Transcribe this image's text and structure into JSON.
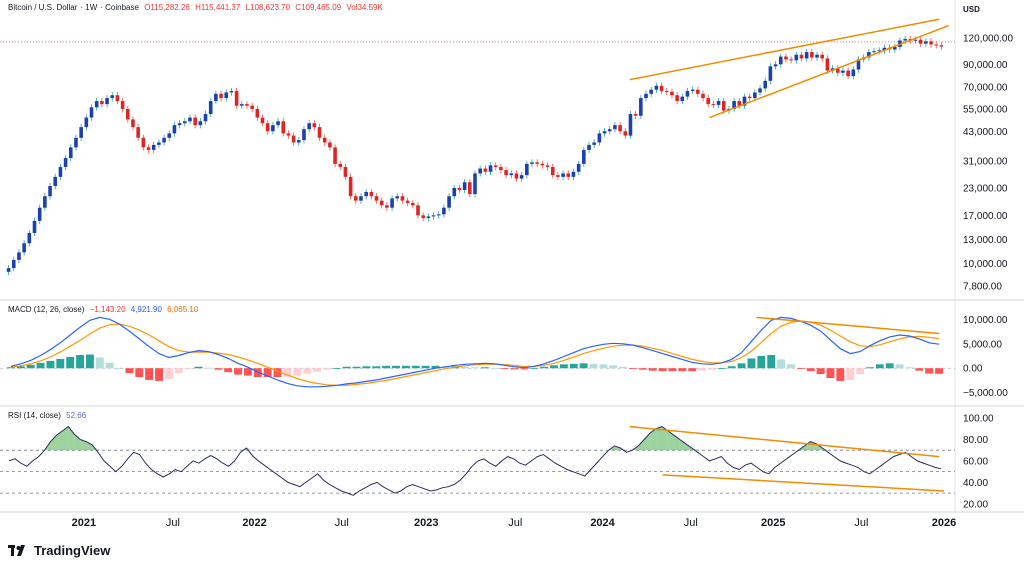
{
  "header": {
    "symbol": "Bitcoin / U.S. Dollar",
    "interval": "1W",
    "exchange": "Coinbase",
    "open": "O115,282.26",
    "high": "H115,441.37",
    "low": "L108,623.70",
    "close": "C109,465.09",
    "volume": "Vol34.59K",
    "currency": "USD"
  },
  "macd_header": {
    "title": "MACD (12, 26, close)",
    "hist": "−1,143.20",
    "macd": "4,921.90",
    "signal": "6,065.10"
  },
  "rsi_header": {
    "title": "RSI (14, close)",
    "value": "52.66"
  },
  "branding": {
    "name": "TradingView"
  },
  "colors": {
    "up": "#26a69a",
    "down": "#ef5350",
    "macd": "#2962ff",
    "signal": "#ff9800",
    "rsi": "#2a2e5a",
    "trend": "#f08c00"
  },
  "chart_data": [
    {
      "type": "candlestick",
      "scale": "log",
      "x_tick_labels": [
        "2021",
        "Jul",
        "2022",
        "Jul",
        "2023",
        "Jul",
        "2024",
        "Jul",
        "2025",
        "Jul",
        "2026"
      ],
      "y_ticks": [
        "120,000.00",
        "90,000.00",
        "70,000.00",
        "55,000.00",
        "43,000.00",
        "31,000.00",
        "23,000.00",
        "17,000.00",
        "13,000.00",
        "10,000.00",
        "7,800.00"
      ],
      "y_values": [
        120000,
        90000,
        70000,
        55000,
        43000,
        31000,
        23000,
        17000,
        13000,
        10000,
        7800
      ],
      "closes": [
        9500,
        10400,
        11300,
        12500,
        14000,
        16000,
        18500,
        21000,
        23500,
        26000,
        29000,
        32000,
        36000,
        40000,
        45000,
        50000,
        56000,
        60000,
        58000,
        62000,
        64000,
        60000,
        55000,
        49000,
        45000,
        40000,
        36000,
        35000,
        37000,
        38000,
        40000,
        42000,
        46000,
        47000,
        48000,
        50000,
        46000,
        48000,
        52000,
        60000,
        65000,
        62000,
        66000,
        67000,
        57000,
        58000,
        57000,
        55000,
        50000,
        47000,
        43000,
        46000,
        48000,
        42000,
        41000,
        38000,
        39000,
        44000,
        47000,
        45000,
        40000,
        38000,
        36000,
        30000,
        29000,
        26000,
        21000,
        20000,
        21000,
        22000,
        21000,
        20000,
        19000,
        18500,
        20500,
        21000,
        20000,
        19500,
        19000,
        17000,
        16500,
        16800,
        17000,
        17200,
        18500,
        21000,
        23000,
        22500,
        24500,
        21500,
        27000,
        28500,
        27500,
        29500,
        29000,
        28000,
        26500,
        27000,
        25500,
        26500,
        30000,
        30500,
        30000,
        29500,
        29000,
        26500,
        26000,
        27000,
        26000,
        27500,
        30000,
        35000,
        37000,
        38000,
        42000,
        43000,
        44000,
        46000,
        43000,
        41000,
        52000,
        51000,
        62000,
        65000,
        68000,
        71000,
        67000,
        66500,
        64000,
        60000,
        63000,
        67000,
        68000,
        65000,
        62000,
        58000,
        57500,
        60000,
        54000,
        55000,
        60000,
        57000,
        63000,
        62000,
        66000,
        69000,
        75000,
        88000,
        90000,
        98000,
        95000,
        94000,
        100000,
        96000,
        103000,
        97000,
        100000,
        96000,
        84000,
        86000,
        82000,
        84000,
        79000,
        85000,
        95000,
        97000,
        103000,
        104000,
        105000,
        108000,
        106000,
        109000,
        117000,
        119000,
        117000,
        118000,
        113000,
        116000,
        112000,
        111000,
        109465
      ],
      "trendlines": [
        {
          "start": "2024-03",
          "end": "2025-09",
          "note": "rising wedge"
        }
      ]
    },
    {
      "type": "line",
      "title": "MACD (12, 26, close)",
      "y_ticks": [
        "10,000.00",
        "5,000.00",
        "0.00",
        "−5,000.00"
      ],
      "y_values": [
        10000,
        5000,
        0,
        -5000
      ],
      "series": [
        {
          "name": "MACD",
          "values": [
            400,
            900,
            1600,
            2600,
            3800,
            5200,
            6800,
            8400,
            9800,
            10400,
            10000,
            9000,
            7600,
            6000,
            4400,
            3000,
            2200,
            2600,
            3200,
            3600,
            3400,
            2800,
            2000,
            1000,
            200,
            -800,
            -1600,
            -2400,
            -3100,
            -3600,
            -3800,
            -3800,
            -3700,
            -3500,
            -3200,
            -3000,
            -2700,
            -2400,
            -2000,
            -1600,
            -1200,
            -800,
            -400,
            0,
            300,
            600,
            800,
            900,
            1000,
            900,
            600,
            300,
            100,
            400,
            900,
            1600,
            2400,
            3200,
            4000,
            4500,
            4900,
            5100,
            5000,
            4700,
            4200,
            3600,
            3000,
            2400,
            1800,
            1200,
            900,
            800,
            1100,
            1800,
            3200,
            5500,
            7800,
            9800,
            10400,
            10200,
            9600,
            8800,
            7600,
            5800,
            4000,
            3000,
            3400,
            4600,
            5600,
            6400,
            6800,
            6600,
            6000,
            5200,
            4921.9
          ]
        },
        {
          "name": "Signal",
          "values": [
            200,
            500,
            900,
            1500,
            2300,
            3300,
            4500,
            5700,
            7000,
            8200,
            8900,
            9000,
            8600,
            7800,
            6800,
            5600,
            4400,
            3600,
            3300,
            3300,
            3300,
            3100,
            2800,
            2300,
            1700,
            1000,
            200,
            -600,
            -1400,
            -2100,
            -2700,
            -3100,
            -3400,
            -3500,
            -3500,
            -3300,
            -3100,
            -2800,
            -2500,
            -2100,
            -1700,
            -1300,
            -900,
            -500,
            -100,
            200,
            500,
            700,
            800,
            850,
            750,
            550,
            350,
            350,
            600,
            1000,
            1600,
            2300,
            3000,
            3600,
            4100,
            4500,
            4700,
            4750,
            4500,
            4100,
            3600,
            3000,
            2400,
            1800,
            1400,
            1100,
            1100,
            1400,
            2200,
            3500,
            5300,
            7100,
            8600,
            9400,
            9700,
            9400,
            8800,
            7800,
            6600,
            5400,
            4600,
            4400,
            4800,
            5400,
            6000,
            6400,
            6500,
            6300,
            6065.1
          ]
        },
        {
          "name": "Histogram",
          "values": [
            200,
            400,
            700,
            1100,
            1500,
            1900,
            2300,
            2700,
            2800,
            2200,
            1100,
            0,
            -1000,
            -1800,
            -2400,
            -2600,
            -2200,
            -1000,
            -100,
            300,
            100,
            -300,
            -800,
            -1300,
            -1500,
            -1800,
            -1800,
            -1800,
            -1700,
            -1500,
            -1100,
            -700,
            -300,
            0,
            300,
            300,
            400,
            400,
            500,
            500,
            500,
            500,
            500,
            500,
            400,
            400,
            300,
            200,
            200,
            50,
            -150,
            -250,
            -250,
            50,
            300,
            600,
            800,
            900,
            1000,
            900,
            800,
            600,
            300,
            -50,
            -300,
            -500,
            -600,
            -600,
            -600,
            -600,
            -500,
            -300,
            0,
            400,
            1000,
            2000,
            2500,
            2700,
            1800,
            800,
            -100,
            -600,
            -1200,
            -2000,
            -2600,
            -2400,
            -1200,
            200,
            800,
            1000,
            800,
            200,
            -500,
            -1100,
            -1143.2
          ]
        }
      ],
      "trendlines": [
        {
          "start": "2024-11",
          "end": "2025-10",
          "note": "bearish divergence"
        }
      ]
    },
    {
      "type": "line",
      "title": "RSI (14, close)",
      "y_ticks": [
        "100.00",
        "80.00",
        "60.00",
        "40.00",
        "20.00"
      ],
      "y_values": [
        100,
        80,
        60,
        40,
        20
      ],
      "bands": [
        70,
        50,
        30
      ],
      "series": [
        {
          "name": "RSI",
          "values": [
            60,
            62,
            58,
            55,
            60,
            64,
            70,
            78,
            84,
            88,
            92,
            85,
            80,
            78,
            75,
            68,
            60,
            55,
            50,
            55,
            62,
            68,
            66,
            58,
            52,
            48,
            45,
            48,
            52,
            50,
            55,
            60,
            58,
            62,
            65,
            62,
            58,
            55,
            60,
            68,
            72,
            65,
            60,
            56,
            52,
            48,
            44,
            40,
            38,
            36,
            40,
            44,
            48,
            42,
            38,
            35,
            32,
            30,
            28,
            32,
            35,
            38,
            40,
            36,
            33,
            30,
            32,
            36,
            38,
            36,
            34,
            32,
            33,
            35,
            36,
            38,
            42,
            48,
            55,
            60,
            62,
            58,
            55,
            60,
            64,
            62,
            58,
            56,
            60,
            64,
            66,
            62,
            58,
            55,
            52,
            50,
            48,
            46,
            52,
            58,
            64,
            70,
            74,
            72,
            68,
            70,
            74,
            80,
            86,
            90,
            92,
            88,
            84,
            80,
            76,
            72,
            68,
            64,
            60,
            62,
            64,
            58,
            54,
            52,
            56,
            58,
            54,
            50,
            48,
            54,
            58,
            62,
            66,
            70,
            74,
            78,
            76,
            72,
            68,
            64,
            60,
            58,
            56,
            54,
            50,
            48,
            52,
            56,
            60,
            64,
            66,
            68,
            64,
            60,
            58,
            56,
            54,
            52.66
          ]
        }
      ],
      "trendlines": [
        {
          "start": "2024-03",
          "end": "2025-09",
          "note": "falling upper"
        },
        {
          "start": "2024-07",
          "end": "2025-09",
          "note": "falling lower"
        }
      ]
    }
  ]
}
